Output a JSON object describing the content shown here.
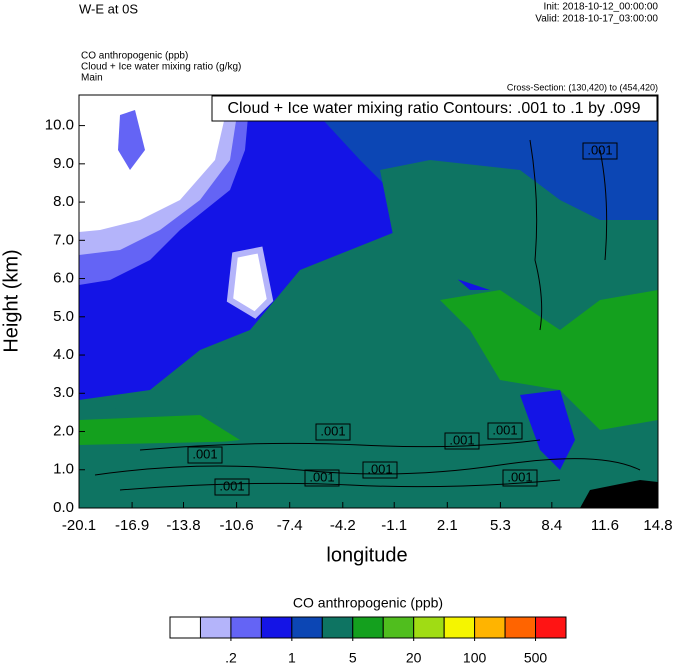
{
  "header": {
    "title": "W-E at 0S",
    "init": "Init: 2018-10-12_00:00:00",
    "valid": "Valid: 2018-10-17_03:00:00",
    "fields": [
      "CO anthropogenic   (ppb)",
      "Cloud + Ice water mixing ratio   (g/kg)",
      "Main"
    ],
    "cross_section": "Cross-Section: (130,420) to (454,420)"
  },
  "chart_data": {
    "type": "contour",
    "title": "Cloud + Ice water mixing ratio Contours: .001 to .1 by .099",
    "x_label": "longitude",
    "y_label": "Height (km)",
    "xlim": [
      -20.1,
      14.8
    ],
    "xticks": [
      -20.1,
      -16.9,
      -13.8,
      -10.6,
      -7.4,
      -4.2,
      -1.1,
      2.1,
      5.3,
      8.4,
      11.6,
      14.8
    ],
    "ylim": [
      0,
      10.8
    ],
    "yticks": [
      {
        "value": 0,
        "label": "0.0"
      },
      {
        "value": 1,
        "label": "1.0"
      },
      {
        "value": 2,
        "label": "2.0"
      },
      {
        "value": 3,
        "label": "3.0"
      },
      {
        "value": 4,
        "label": "4.0"
      },
      {
        "value": 5,
        "label": "5.0"
      },
      {
        "value": 6,
        "label": "6.0"
      },
      {
        "value": 7,
        "label": "7.0"
      },
      {
        "value": 8,
        "label": "8.0"
      },
      {
        "value": 9,
        "label": "9.0"
      },
      {
        "value": 10,
        "label": "10.0"
      }
    ],
    "contour_labels": [
      ".001",
      ".001",
      ".001",
      ".001",
      ".001",
      ".001",
      ".001",
      ".001",
      ".001"
    ],
    "colorbar": {
      "title": "CO anthropogenic  (ppb)",
      "colors": [
        "#ffffff",
        "#b4b4fa",
        "#6464f5",
        "#1414e6",
        "#0c46b4",
        "#0e7462",
        "#14a01e",
        "#50be1e",
        "#a0dc14",
        "#f5f500",
        "#ffb400",
        "#ff6400",
        "#ff1414"
      ],
      "ticks": [
        {
          "value": 0.2,
          "label": ".2"
        },
        1,
        5,
        20,
        100,
        500
      ]
    }
  }
}
